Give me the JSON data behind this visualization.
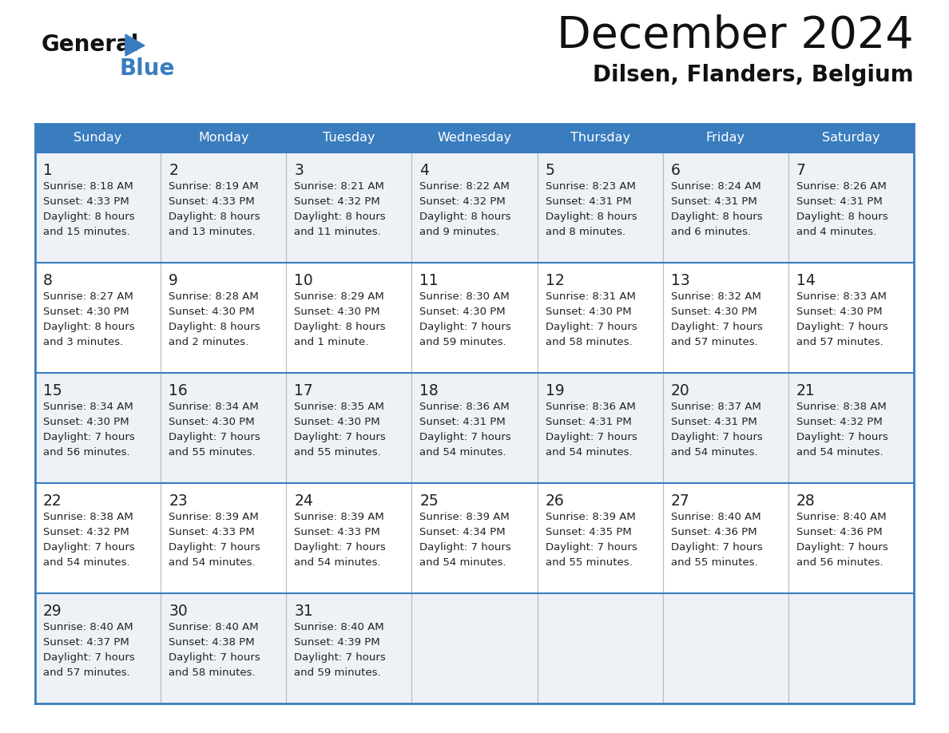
{
  "title": "December 2024",
  "subtitle": "Dilsen, Flanders, Belgium",
  "header_color": "#3a7dbf",
  "header_text_color": "#ffffff",
  "cell_bg_light": "#eef1f5",
  "cell_bg_white": "#ffffff",
  "border_color": "#3a7dbf",
  "separator_color": "#b0bfd0",
  "text_color": "#222222",
  "day_names": [
    "Sunday",
    "Monday",
    "Tuesday",
    "Wednesday",
    "Thursday",
    "Friday",
    "Saturday"
  ],
  "days": [
    {
      "day": 1,
      "col": 0,
      "row": 0,
      "sunrise": "8:18 AM",
      "sunset": "4:33 PM",
      "dl1": "Daylight: 8 hours",
      "dl2": "and 15 minutes."
    },
    {
      "day": 2,
      "col": 1,
      "row": 0,
      "sunrise": "8:19 AM",
      "sunset": "4:33 PM",
      "dl1": "Daylight: 8 hours",
      "dl2": "and 13 minutes."
    },
    {
      "day": 3,
      "col": 2,
      "row": 0,
      "sunrise": "8:21 AM",
      "sunset": "4:32 PM",
      "dl1": "Daylight: 8 hours",
      "dl2": "and 11 minutes."
    },
    {
      "day": 4,
      "col": 3,
      "row": 0,
      "sunrise": "8:22 AM",
      "sunset": "4:32 PM",
      "dl1": "Daylight: 8 hours",
      "dl2": "and 9 minutes."
    },
    {
      "day": 5,
      "col": 4,
      "row": 0,
      "sunrise": "8:23 AM",
      "sunset": "4:31 PM",
      "dl1": "Daylight: 8 hours",
      "dl2": "and 8 minutes."
    },
    {
      "day": 6,
      "col": 5,
      "row": 0,
      "sunrise": "8:24 AM",
      "sunset": "4:31 PM",
      "dl1": "Daylight: 8 hours",
      "dl2": "and 6 minutes."
    },
    {
      "day": 7,
      "col": 6,
      "row": 0,
      "sunrise": "8:26 AM",
      "sunset": "4:31 PM",
      "dl1": "Daylight: 8 hours",
      "dl2": "and 4 minutes."
    },
    {
      "day": 8,
      "col": 0,
      "row": 1,
      "sunrise": "8:27 AM",
      "sunset": "4:30 PM",
      "dl1": "Daylight: 8 hours",
      "dl2": "and 3 minutes."
    },
    {
      "day": 9,
      "col": 1,
      "row": 1,
      "sunrise": "8:28 AM",
      "sunset": "4:30 PM",
      "dl1": "Daylight: 8 hours",
      "dl2": "and 2 minutes."
    },
    {
      "day": 10,
      "col": 2,
      "row": 1,
      "sunrise": "8:29 AM",
      "sunset": "4:30 PM",
      "dl1": "Daylight: 8 hours",
      "dl2": "and 1 minute."
    },
    {
      "day": 11,
      "col": 3,
      "row": 1,
      "sunrise": "8:30 AM",
      "sunset": "4:30 PM",
      "dl1": "Daylight: 7 hours",
      "dl2": "and 59 minutes."
    },
    {
      "day": 12,
      "col": 4,
      "row": 1,
      "sunrise": "8:31 AM",
      "sunset": "4:30 PM",
      "dl1": "Daylight: 7 hours",
      "dl2": "and 58 minutes."
    },
    {
      "day": 13,
      "col": 5,
      "row": 1,
      "sunrise": "8:32 AM",
      "sunset": "4:30 PM",
      "dl1": "Daylight: 7 hours",
      "dl2": "and 57 minutes."
    },
    {
      "day": 14,
      "col": 6,
      "row": 1,
      "sunrise": "8:33 AM",
      "sunset": "4:30 PM",
      "dl1": "Daylight: 7 hours",
      "dl2": "and 57 minutes."
    },
    {
      "day": 15,
      "col": 0,
      "row": 2,
      "sunrise": "8:34 AM",
      "sunset": "4:30 PM",
      "dl1": "Daylight: 7 hours",
      "dl2": "and 56 minutes."
    },
    {
      "day": 16,
      "col": 1,
      "row": 2,
      "sunrise": "8:34 AM",
      "sunset": "4:30 PM",
      "dl1": "Daylight: 7 hours",
      "dl2": "and 55 minutes."
    },
    {
      "day": 17,
      "col": 2,
      "row": 2,
      "sunrise": "8:35 AM",
      "sunset": "4:30 PM",
      "dl1": "Daylight: 7 hours",
      "dl2": "and 55 minutes."
    },
    {
      "day": 18,
      "col": 3,
      "row": 2,
      "sunrise": "8:36 AM",
      "sunset": "4:31 PM",
      "dl1": "Daylight: 7 hours",
      "dl2": "and 54 minutes."
    },
    {
      "day": 19,
      "col": 4,
      "row": 2,
      "sunrise": "8:36 AM",
      "sunset": "4:31 PM",
      "dl1": "Daylight: 7 hours",
      "dl2": "and 54 minutes."
    },
    {
      "day": 20,
      "col": 5,
      "row": 2,
      "sunrise": "8:37 AM",
      "sunset": "4:31 PM",
      "dl1": "Daylight: 7 hours",
      "dl2": "and 54 minutes."
    },
    {
      "day": 21,
      "col": 6,
      "row": 2,
      "sunrise": "8:38 AM",
      "sunset": "4:32 PM",
      "dl1": "Daylight: 7 hours",
      "dl2": "and 54 minutes."
    },
    {
      "day": 22,
      "col": 0,
      "row": 3,
      "sunrise": "8:38 AM",
      "sunset": "4:32 PM",
      "dl1": "Daylight: 7 hours",
      "dl2": "and 54 minutes."
    },
    {
      "day": 23,
      "col": 1,
      "row": 3,
      "sunrise": "8:39 AM",
      "sunset": "4:33 PM",
      "dl1": "Daylight: 7 hours",
      "dl2": "and 54 minutes."
    },
    {
      "day": 24,
      "col": 2,
      "row": 3,
      "sunrise": "8:39 AM",
      "sunset": "4:33 PM",
      "dl1": "Daylight: 7 hours",
      "dl2": "and 54 minutes."
    },
    {
      "day": 25,
      "col": 3,
      "row": 3,
      "sunrise": "8:39 AM",
      "sunset": "4:34 PM",
      "dl1": "Daylight: 7 hours",
      "dl2": "and 54 minutes."
    },
    {
      "day": 26,
      "col": 4,
      "row": 3,
      "sunrise": "8:39 AM",
      "sunset": "4:35 PM",
      "dl1": "Daylight: 7 hours",
      "dl2": "and 55 minutes."
    },
    {
      "day": 27,
      "col": 5,
      "row": 3,
      "sunrise": "8:40 AM",
      "sunset": "4:36 PM",
      "dl1": "Daylight: 7 hours",
      "dl2": "and 55 minutes."
    },
    {
      "day": 28,
      "col": 6,
      "row": 3,
      "sunrise": "8:40 AM",
      "sunset": "4:36 PM",
      "dl1": "Daylight: 7 hours",
      "dl2": "and 56 minutes."
    },
    {
      "day": 29,
      "col": 0,
      "row": 4,
      "sunrise": "8:40 AM",
      "sunset": "4:37 PM",
      "dl1": "Daylight: 7 hours",
      "dl2": "and 57 minutes."
    },
    {
      "day": 30,
      "col": 1,
      "row": 4,
      "sunrise": "8:40 AM",
      "sunset": "4:38 PM",
      "dl1": "Daylight: 7 hours",
      "dl2": "and 58 minutes."
    },
    {
      "day": 31,
      "col": 2,
      "row": 4,
      "sunrise": "8:40 AM",
      "sunset": "4:39 PM",
      "dl1": "Daylight: 7 hours",
      "dl2": "and 59 minutes."
    }
  ],
  "num_rows": 5,
  "num_cols": 7,
  "fig_width": 11.88,
  "fig_height": 9.18,
  "dpi": 100
}
